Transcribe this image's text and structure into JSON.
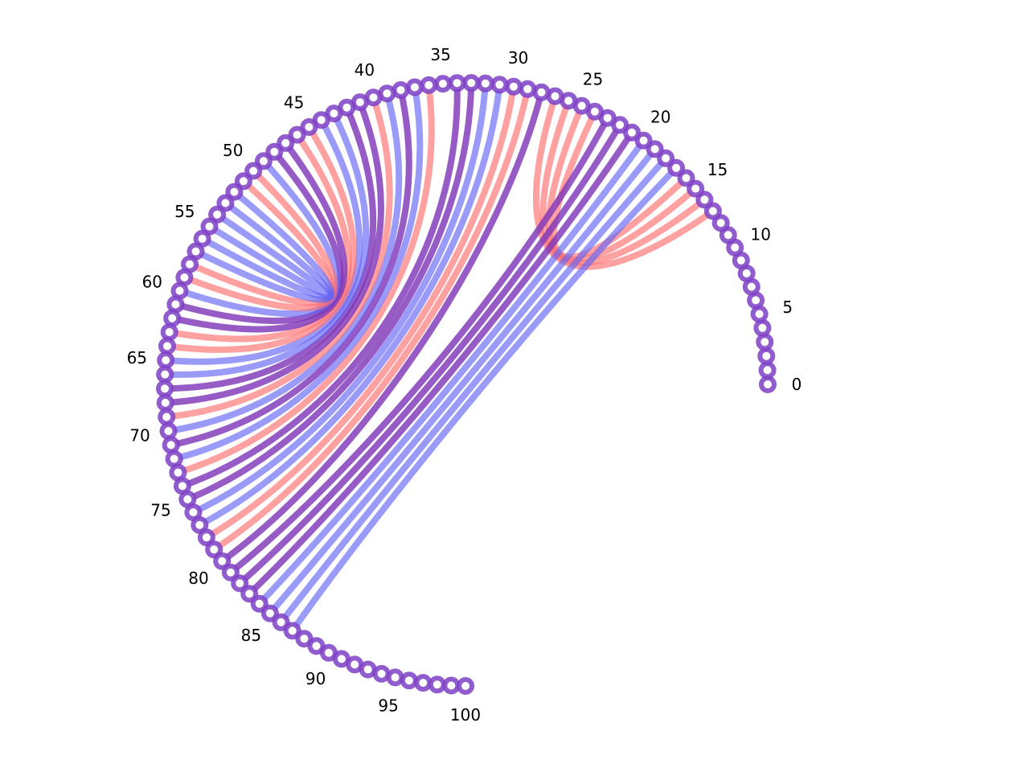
{
  "diagram": {
    "type": "arc-diagram",
    "node_count": 101,
    "colors": {
      "node_ring": "#7e40c4",
      "node_fill": "#ffffff",
      "link_blue": "#6464f5",
      "link_red": "#ff6e6e",
      "link_purple": "#8037b8"
    },
    "tick_labels": [
      "0",
      "5",
      "10",
      "15",
      "20",
      "25",
      "30",
      "35",
      "40",
      "45",
      "50",
      "55",
      "60",
      "65",
      "70",
      "75",
      "80",
      "85",
      "90",
      "95",
      "100"
    ],
    "links": [
      {
        "from": 13,
        "to": 27,
        "color": "red"
      },
      {
        "from": 14,
        "to": 26,
        "color": "red"
      },
      {
        "from": 15,
        "to": 25,
        "color": "red"
      },
      {
        "from": 16,
        "to": 24,
        "color": "red"
      },
      {
        "from": 17,
        "to": 87,
        "color": "blue"
      },
      {
        "from": 18,
        "to": 86,
        "color": "blue"
      },
      {
        "from": 19,
        "to": 85,
        "color": "blue"
      },
      {
        "from": 20,
        "to": 84,
        "color": "blue"
      },
      {
        "from": 21,
        "to": 83,
        "color": "purple"
      },
      {
        "from": 22,
        "to": 82,
        "color": "purple"
      },
      {
        "from": 23,
        "to": 81,
        "color": "purple"
      },
      {
        "from": 28,
        "to": 80,
        "color": "purple"
      },
      {
        "from": 29,
        "to": 79,
        "color": "red"
      },
      {
        "from": 30,
        "to": 78,
        "color": "red"
      },
      {
        "from": 31,
        "to": 77,
        "color": "blue"
      },
      {
        "from": 32,
        "to": 76,
        "color": "blue"
      },
      {
        "from": 33,
        "to": 75,
        "color": "purple"
      },
      {
        "from": 34,
        "to": 74,
        "color": "purple"
      },
      {
        "from": 36,
        "to": 73,
        "color": "red"
      },
      {
        "from": 37,
        "to": 72,
        "color": "blue"
      },
      {
        "from": 38,
        "to": 71,
        "color": "purple"
      },
      {
        "from": 39,
        "to": 70,
        "color": "blue"
      },
      {
        "from": 40,
        "to": 69,
        "color": "red"
      },
      {
        "from": 41,
        "to": 68,
        "color": "purple"
      },
      {
        "from": 42,
        "to": 67,
        "color": "purple"
      },
      {
        "from": 43,
        "to": 66,
        "color": "blue"
      },
      {
        "from": 44,
        "to": 65,
        "color": "blue"
      },
      {
        "from": 45,
        "to": 64,
        "color": "red"
      },
      {
        "from": 46,
        "to": 63,
        "color": "red"
      },
      {
        "from": 47,
        "to": 62,
        "color": "purple"
      },
      {
        "from": 48,
        "to": 61,
        "color": "purple"
      },
      {
        "from": 49,
        "to": 60,
        "color": "blue"
      },
      {
        "from": 50,
        "to": 59,
        "color": "red"
      },
      {
        "from": 51,
        "to": 58,
        "color": "red"
      },
      {
        "from": 52,
        "to": 57,
        "color": "blue"
      },
      {
        "from": 53,
        "to": 56,
        "color": "blue"
      },
      {
        "from": 54,
        "to": 55,
        "color": "blue"
      }
    ]
  }
}
